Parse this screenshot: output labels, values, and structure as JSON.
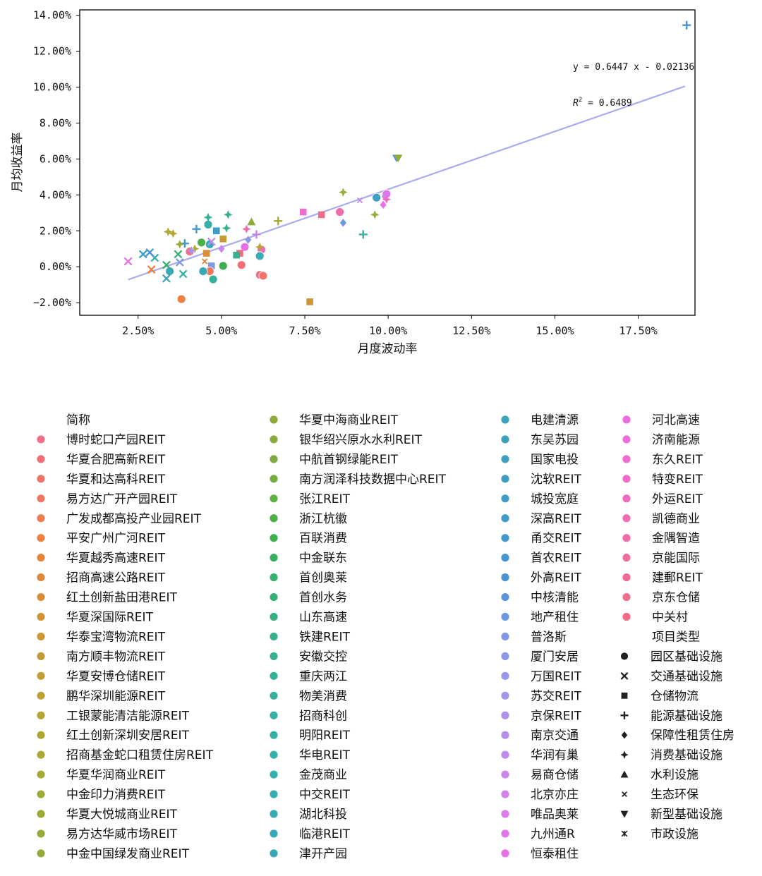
{
  "chart_data": {
    "type": "scatter",
    "xlabel": "月度波动率",
    "ylabel": "月均收益率",
    "xlim": [
      0.75,
      19.2
    ],
    "ylim": [
      -2.7,
      14.3
    ],
    "x_ticks": [
      2.5,
      5.0,
      7.5,
      10.0,
      12.5,
      15.0,
      17.5
    ],
    "x_tick_labels": [
      "2.50%",
      "5.00%",
      "7.50%",
      "10.00%",
      "12.50%",
      "15.00%",
      "17.50%"
    ],
    "y_ticks": [
      -2,
      0,
      2,
      4,
      6,
      8,
      10,
      12,
      14
    ],
    "y_tick_labels": [
      "−2.00%",
      "0.00%",
      "2.00%",
      "4.00%",
      "6.00%",
      "8.00%",
      "10.00%",
      "12.00%",
      "14.00%"
    ],
    "grid": false,
    "equation": "y = 0.6447 x - 0.02136",
    "r2_label": "R",
    "r2_sup": "2",
    "r2_value": " = 0.6489",
    "trendline": {
      "slope": 0.6447,
      "intercept": -2.136,
      "x_range": [
        2.2,
        18.9
      ],
      "color": "#aaaaf0"
    },
    "legend_title_name": "简称",
    "legend_title_type": "项目类型",
    "names": [
      {
        "name": "博时蛇口产园REIT",
        "color": "#f0708a"
      },
      {
        "name": "华夏合肥高新REIT",
        "color": "#f0707a"
      },
      {
        "name": "华夏和达高科REIT",
        "color": "#f0746a"
      },
      {
        "name": "易方达广开产园REIT",
        "color": "#f07860"
      },
      {
        "name": "广发成都高投产业园REIT",
        "color": "#ee7c52"
      },
      {
        "name": "平安广州广河REIT",
        "color": "#ec8040"
      },
      {
        "name": "华夏越秀高速REIT",
        "color": "#e6843a"
      },
      {
        "name": "招商高速公路REIT",
        "color": "#de8a3a"
      },
      {
        "name": "红土创新盐田港REIT",
        "color": "#d68e38"
      },
      {
        "name": "华夏深国际REIT",
        "color": "#d29236"
      },
      {
        "name": "华泰宝湾物流REIT",
        "color": "#cc9634"
      },
      {
        "name": "南方顺丰物流REIT",
        "color": "#c69a34"
      },
      {
        "name": "华夏安博仓储REIT",
        "color": "#c29e34"
      },
      {
        "name": "鹏华深圳能源REIT",
        "color": "#bca234"
      },
      {
        "name": "工银蒙能清洁能源REIT",
        "color": "#b6a634"
      },
      {
        "name": "红土创新深圳安居REIT",
        "color": "#b0a834"
      },
      {
        "name": "招商基金蛇口租赁住房REIT",
        "color": "#aaaa34"
      },
      {
        "name": "华夏华润商业REIT",
        "color": "#a4aa34"
      },
      {
        "name": "中金印力消费REIT",
        "color": "#a0aa36"
      },
      {
        "name": "华夏大悦城商业REIT",
        "color": "#9caa36"
      },
      {
        "name": "易方达华威市场REIT",
        "color": "#98aa38"
      },
      {
        "name": "中金中国绿发商业REIT",
        "color": "#94aa3a"
      },
      {
        "name": "华夏中海商业REIT",
        "color": "#8eaa3c"
      },
      {
        "name": "银华绍兴原水水利REIT",
        "color": "#88aa3e"
      },
      {
        "name": "中航首钢绿能REIT",
        "color": "#7eac40"
      },
      {
        "name": "南方润泽科技数据中心REIT",
        "color": "#72ae42"
      },
      {
        "name": "张江REIT",
        "color": "#60b044"
      },
      {
        "name": "浙江杭徽",
        "color": "#4cb048"
      },
      {
        "name": "百联消费",
        "color": "#3cb050"
      },
      {
        "name": "中金联东",
        "color": "#36b060"
      },
      {
        "name": "首创奥莱",
        "color": "#36b06c"
      },
      {
        "name": "首创水务",
        "color": "#36b076"
      },
      {
        "name": "山东高速",
        "color": "#36b080"
      },
      {
        "name": "铁建REIT",
        "color": "#36b088"
      },
      {
        "name": "安徽交控",
        "color": "#36b090"
      },
      {
        "name": "重庆两江",
        "color": "#36b096"
      },
      {
        "name": "物美消费",
        "color": "#36b09c"
      },
      {
        "name": "招商科创",
        "color": "#36b0a2"
      },
      {
        "name": "明阳REIT",
        "color": "#36b0a6"
      },
      {
        "name": "华电REIT",
        "color": "#36b0aa"
      },
      {
        "name": "金茂商业",
        "color": "#36aeb0"
      },
      {
        "name": "中交REIT",
        "color": "#38acb2"
      },
      {
        "name": "湖北科投",
        "color": "#38aab4"
      },
      {
        "name": "临港REIT",
        "color": "#38a8b6"
      },
      {
        "name": "津开产园",
        "color": "#3aa6b8"
      },
      {
        "name": "电建清源",
        "color": "#3aa4ba"
      },
      {
        "name": "东吴苏园",
        "color": "#3ca2bc"
      },
      {
        "name": "国家电投",
        "color": "#3ca0be"
      },
      {
        "name": "沈软REIT",
        "color": "#3e9ec2"
      },
      {
        "name": "城投宽庭",
        "color": "#3e9cc6"
      },
      {
        "name": "深高REIT",
        "color": "#409aca"
      },
      {
        "name": "甬交REIT",
        "color": "#4298ce"
      },
      {
        "name": "首农REIT",
        "color": "#4496d2"
      },
      {
        "name": "外高REIT",
        "color": "#4892d6"
      },
      {
        "name": "中核清能",
        "color": "#5c94dc"
      },
      {
        "name": "地产租住",
        "color": "#6e96e0"
      },
      {
        "name": "普洛斯",
        "color": "#7e98e4"
      },
      {
        "name": "厦门安居",
        "color": "#8c98e6"
      },
      {
        "name": "万国REIT",
        "color": "#9896e8"
      },
      {
        "name": "苏交REIT",
        "color": "#a494ea"
      },
      {
        "name": "京保REIT",
        "color": "#ae92ea"
      },
      {
        "name": "南京交通",
        "color": "#b88eec"
      },
      {
        "name": "华润有巢",
        "color": "#c28aec"
      },
      {
        "name": "易商仓储",
        "color": "#ca86ec"
      },
      {
        "name": "北京亦庄",
        "color": "#d282ec"
      },
      {
        "name": "唯品奥莱",
        "color": "#da7cec"
      },
      {
        "name": "九州通R",
        "color": "#e076ea"
      },
      {
        "name": "恒泰租住",
        "color": "#e670e6"
      },
      {
        "name": "河北高速",
        "color": "#ea6ee0"
      },
      {
        "name": "济南能源",
        "color": "#ec6cd8"
      },
      {
        "name": "东久REIT",
        "color": "#ee6cd0"
      },
      {
        "name": "特变REIT",
        "color": "#ee6cc6"
      },
      {
        "name": "外运REIT",
        "color": "#ee6cbc"
      },
      {
        "name": "凯德商业",
        "color": "#ee6cb2"
      },
      {
        "name": "金隅智造",
        "color": "#ee6ca8"
      },
      {
        "name": "京能国际",
        "color": "#ee6c9e"
      },
      {
        "name": "建郵REIT",
        "color": "#ee6c96"
      },
      {
        "name": "京东仓储",
        "color": "#ee6c8e"
      },
      {
        "name": "中关村",
        "color": "#ee6c86"
      }
    ],
    "types": [
      {
        "name": "园区基础设施",
        "marker": "circle"
      },
      {
        "name": "交通基础设施",
        "marker": "x"
      },
      {
        "name": "仓储物流",
        "marker": "square"
      },
      {
        "name": "能源基础设施",
        "marker": "plus"
      },
      {
        "name": "保障性租赁住房",
        "marker": "diamond"
      },
      {
        "name": "消费基础设施",
        "marker": "star"
      },
      {
        "name": "水利设施",
        "marker": "triangle-up"
      },
      {
        "name": "生态环保",
        "marker": "xsmall"
      },
      {
        "name": "新型基础设施",
        "marker": "triangle-down"
      },
      {
        "name": "市政设施",
        "marker": "asterisk"
      }
    ],
    "points": [
      {
        "x": 18.95,
        "y": 13.45,
        "color": "#4892d6",
        "marker": "plus"
      },
      {
        "x": 10.25,
        "y": 6.05,
        "color": "#5c94dc",
        "marker": "triangle-down"
      },
      {
        "x": 10.3,
        "y": 6.05,
        "color": "#94aa3a",
        "marker": "triangle-down"
      },
      {
        "x": 9.95,
        "y": 4.05,
        "color": "#e076ea",
        "marker": "circle"
      },
      {
        "x": 9.9,
        "y": 3.9,
        "color": "#d282ec",
        "marker": "diamond"
      },
      {
        "x": 9.95,
        "y": 3.75,
        "color": "#ee6cc6",
        "marker": "star"
      },
      {
        "x": 9.85,
        "y": 3.45,
        "color": "#e670e6",
        "marker": "diamond"
      },
      {
        "x": 9.65,
        "y": 3.85,
        "color": "#3e9ec2",
        "marker": "circle"
      },
      {
        "x": 9.6,
        "y": 2.9,
        "color": "#9caa36",
        "marker": "star"
      },
      {
        "x": 9.25,
        "y": 1.8,
        "color": "#36b0a2",
        "marker": "plus"
      },
      {
        "x": 8.65,
        "y": 4.15,
        "color": "#a0aa36",
        "marker": "star"
      },
      {
        "x": 8.65,
        "y": 2.45,
        "color": "#6e96e0",
        "marker": "diamond"
      },
      {
        "x": 8.55,
        "y": 3.05,
        "color": "#ee6ca8",
        "marker": "circle"
      },
      {
        "x": 9.15,
        "y": 3.7,
        "color": "#c28aec",
        "marker": "xsmall"
      },
      {
        "x": 8.0,
        "y": 2.9,
        "color": "#ee6c8e",
        "marker": "square"
      },
      {
        "x": 7.45,
        "y": 3.05,
        "color": "#ee6cd0",
        "marker": "square"
      },
      {
        "x": 6.7,
        "y": 2.55,
        "color": "#aaaa34",
        "marker": "plus"
      },
      {
        "x": 7.65,
        "y": -1.95,
        "color": "#cc9634",
        "marker": "square"
      },
      {
        "x": 6.2,
        "y": 0.95,
        "color": "#ee6cbc",
        "marker": "circle"
      },
      {
        "x": 6.15,
        "y": 1.1,
        "color": "#bca234",
        "marker": "star"
      },
      {
        "x": 6.15,
        "y": 0.6,
        "color": "#38acb2",
        "marker": "circle"
      },
      {
        "x": 6.15,
        "y": -0.45,
        "color": "#f0708a",
        "marker": "circle"
      },
      {
        "x": 6.25,
        "y": -0.5,
        "color": "#f0746a",
        "marker": "circle"
      },
      {
        "x": 6.05,
        "y": 1.8,
        "color": "#c28aec",
        "marker": "plus"
      },
      {
        "x": 5.9,
        "y": 2.5,
        "color": "#88aa3e",
        "marker": "triangle-up"
      },
      {
        "x": 5.8,
        "y": 1.5,
        "color": "#8c98e6",
        "marker": "diamond"
      },
      {
        "x": 5.75,
        "y": 2.1,
        "color": "#ee6cb2",
        "marker": "star"
      },
      {
        "x": 5.7,
        "y": 1.1,
        "color": "#e670e6",
        "marker": "circle"
      },
      {
        "x": 5.6,
        "y": 0.1,
        "color": "#f0707a",
        "marker": "circle"
      },
      {
        "x": 5.55,
        "y": 0.75,
        "color": "#ee6c86",
        "marker": "square"
      },
      {
        "x": 5.45,
        "y": 0.65,
        "color": "#36b090",
        "marker": "square"
      },
      {
        "x": 5.2,
        "y": 2.9,
        "color": "#36b080",
        "marker": "star"
      },
      {
        "x": 5.15,
        "y": 2.15,
        "color": "#36b088",
        "marker": "star"
      },
      {
        "x": 5.05,
        "y": 1.55,
        "color": "#c69a34",
        "marker": "square"
      },
      {
        "x": 5.0,
        "y": 1.0,
        "color": "#ca86ec",
        "marker": "diamond"
      },
      {
        "x": 5.05,
        "y": 0.05,
        "color": "#3cb050",
        "marker": "circle"
      },
      {
        "x": 4.85,
        "y": 2.0,
        "color": "#3e9cc6",
        "marker": "square"
      },
      {
        "x": 4.7,
        "y": 0.05,
        "color": "#7e98e4",
        "marker": "square"
      },
      {
        "x": 4.75,
        "y": -0.7,
        "color": "#36b09c",
        "marker": "circle"
      },
      {
        "x": 4.6,
        "y": 2.35,
        "color": "#36b0aa",
        "marker": "circle"
      },
      {
        "x": 4.6,
        "y": 2.75,
        "color": "#36b096",
        "marker": "star"
      },
      {
        "x": 4.65,
        "y": 1.25,
        "color": "#3aa6b8",
        "marker": "circle"
      },
      {
        "x": 4.7,
        "y": 1.4,
        "color": "#b88eec",
        "marker": "x"
      },
      {
        "x": 4.55,
        "y": 0.75,
        "color": "#d68e38",
        "marker": "square"
      },
      {
        "x": 4.5,
        "y": 0.3,
        "color": "#e6843a",
        "marker": "xsmall"
      },
      {
        "x": 4.65,
        "y": -0.25,
        "color": "#f07860",
        "marker": "circle"
      },
      {
        "x": 4.45,
        "y": -0.25,
        "color": "#38a8b6",
        "marker": "circle"
      },
      {
        "x": 4.4,
        "y": 1.35,
        "color": "#4cb048",
        "marker": "circle"
      },
      {
        "x": 4.25,
        "y": 2.1,
        "color": "#409aca",
        "marker": "plus"
      },
      {
        "x": 4.2,
        "y": 1.0,
        "color": "#aaaa34",
        "marker": "star"
      },
      {
        "x": 4.05,
        "y": 0.85,
        "color": "#f0708a",
        "marker": "circle"
      },
      {
        "x": 3.9,
        "y": 1.3,
        "color": "#4298ce",
        "marker": "plus"
      },
      {
        "x": 3.85,
        "y": -0.4,
        "color": "#36b0a6",
        "marker": "x"
      },
      {
        "x": 3.8,
        "y": -1.8,
        "color": "#ec8040",
        "marker": "circle"
      },
      {
        "x": 3.75,
        "y": 0.25,
        "color": "#7e98e4",
        "marker": "x"
      },
      {
        "x": 3.7,
        "y": 0.7,
        "color": "#36b076",
        "marker": "x"
      },
      {
        "x": 3.75,
        "y": 1.25,
        "color": "#9caa36",
        "marker": "star"
      },
      {
        "x": 3.55,
        "y": 1.85,
        "color": "#bca234",
        "marker": "star"
      },
      {
        "x": 3.45,
        "y": -0.25,
        "color": "#38a8b6",
        "marker": "circle"
      },
      {
        "x": 3.4,
        "y": 1.95,
        "color": "#b0a834",
        "marker": "star"
      },
      {
        "x": 3.35,
        "y": 0.1,
        "color": "#36b06c",
        "marker": "x"
      },
      {
        "x": 3.35,
        "y": -0.65,
        "color": "#3ca2bc",
        "marker": "x"
      },
      {
        "x": 3.0,
        "y": 0.5,
        "color": "#36b0aa",
        "marker": "x"
      },
      {
        "x": 2.85,
        "y": 0.8,
        "color": "#4496d2",
        "marker": "x"
      },
      {
        "x": 2.65,
        "y": 0.7,
        "color": "#3e9cc6",
        "marker": "x"
      },
      {
        "x": 2.2,
        "y": 0.3,
        "color": "#e670e6",
        "marker": "x"
      },
      {
        "x": 2.9,
        "y": -0.15,
        "color": "#ec8040",
        "marker": "x"
      },
      {
        "x": 4.1,
        "y": 0.9,
        "color": "#ae92ea",
        "marker": "star"
      }
    ]
  }
}
